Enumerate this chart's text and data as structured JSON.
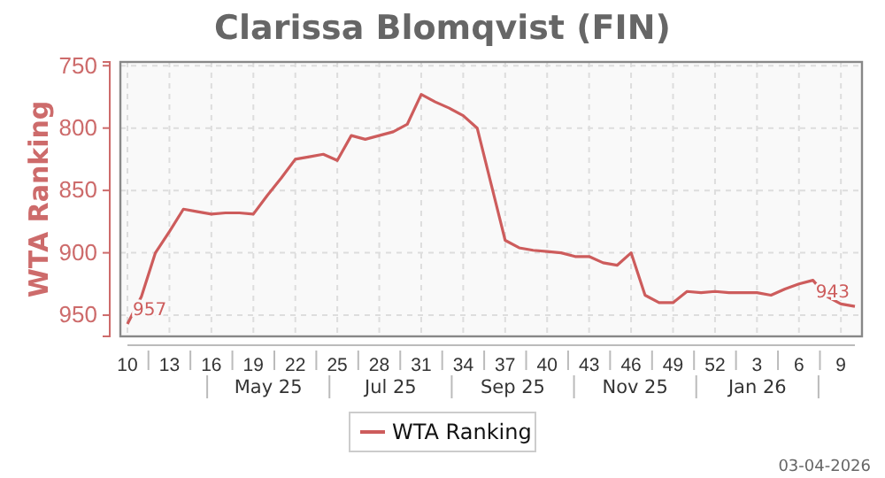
{
  "chart_data": {
    "type": "line",
    "title": "Clarissa Blomqvist (FIN)",
    "ylabel": "WTA Ranking",
    "categories": [
      "10",
      null,
      null,
      "13",
      null,
      null,
      "16",
      null,
      null,
      "19",
      null,
      null,
      "22",
      null,
      null,
      "25",
      null,
      null,
      "28",
      null,
      null,
      "31",
      null,
      null,
      "34",
      null,
      null,
      "37",
      null,
      null,
      "40",
      null,
      null,
      "43",
      null,
      null,
      "46",
      null,
      null,
      "49",
      null,
      null,
      "52",
      null,
      null,
      "3",
      null,
      null,
      "6",
      null,
      null,
      "9",
      null
    ],
    "series": [
      {
        "name": "WTA Ranking",
        "color": "#cd5c5c",
        "values": [
          957,
          935,
          900,
          883,
          865,
          867,
          869,
          868,
          868,
          869,
          854,
          840,
          825,
          823,
          821,
          826,
          806,
          809,
          806,
          803,
          797,
          773,
          779,
          784,
          790,
          800,
          845,
          890,
          896,
          898,
          899,
          900,
          903,
          903,
          908,
          910,
          900,
          934,
          940,
          940,
          931,
          932,
          931,
          932,
          932,
          932,
          934,
          929,
          925,
          922,
          935,
          941,
          943
        ],
        "value_labels": [
          "957",
          null,
          null,
          null,
          null,
          null,
          null,
          null,
          null,
          null,
          null,
          null,
          null,
          null,
          null,
          null,
          null,
          null,
          null,
          null,
          null,
          null,
          null,
          null,
          null,
          null,
          null,
          null,
          null,
          null,
          null,
          null,
          null,
          null,
          null,
          null,
          null,
          null,
          null,
          null,
          null,
          null,
          null,
          null,
          null,
          null,
          null,
          null,
          null,
          null,
          null,
          null,
          "943"
        ]
      }
    ],
    "ylim": [
      967,
      747
    ],
    "yticks": [
      750,
      800,
      850,
      900,
      950
    ],
    "grid": true,
    "legend": "bottom",
    "annotations": [
      "May 25",
      "Jul 25",
      "Sep 25",
      "Nov 25",
      "Jan 26",
      "03-04-2026"
    ]
  }
}
